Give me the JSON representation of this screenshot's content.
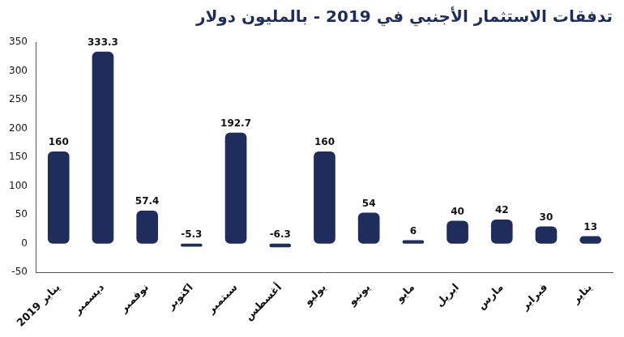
{
  "chart_data": {
    "type": "bar",
    "title": "تدفقات الاستثمار الأجنبي في 2019 - بالمليون دولار",
    "categories": [
      "يناير 2019",
      "ديسمبر",
      "نوفمبر",
      "اكتوبر",
      "سبتمبر",
      "أغسطس",
      "يوليو",
      "يونيو",
      "مايو",
      "ابريل",
      "مارس",
      "فبراير",
      "يناير"
    ],
    "values": [
      160,
      333.3,
      57.4,
      -5.3,
      192.7,
      -6.3,
      160,
      54,
      6,
      40,
      42,
      30,
      13
    ],
    "color": "#1f2d5c",
    "ylim": [
      -50,
      350
    ],
    "yticks": [
      -50,
      0,
      50,
      100,
      150,
      200,
      250,
      300,
      350
    ],
    "grid": false,
    "data_labels": true
  }
}
